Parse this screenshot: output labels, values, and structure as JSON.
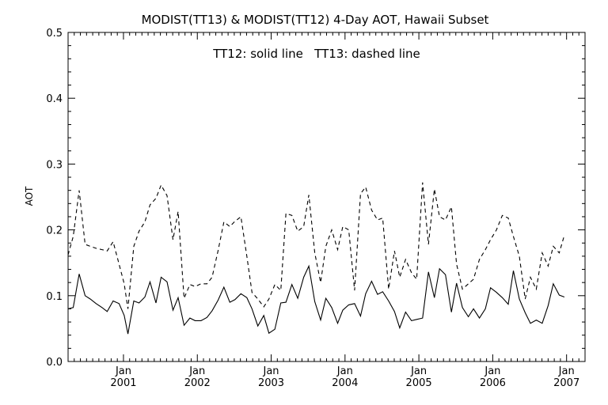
{
  "chart_data": {
    "type": "line",
    "title": "MODIST(TT13) & MODIST(TT12) 4-Day AOT, Hawaii Subset",
    "legend_text": "TT12: solid line   TT13: dashed line",
    "legend_placement": "top-center",
    "ylabel": "AOT",
    "xlabel": "",
    "ylim": [
      0.0,
      0.5
    ],
    "yticks": [
      "0.0",
      "0.1",
      "0.2",
      "0.3",
      "0.4",
      "0.5"
    ],
    "xlim": [
      2000.25,
      2007.25
    ],
    "xticks": [
      {
        "month": "Jan",
        "year": "2001",
        "value": 2001
      },
      {
        "month": "Jan",
        "year": "2002",
        "value": 2002
      },
      {
        "month": "Jan",
        "year": "2003",
        "value": 2003
      },
      {
        "month": "Jan",
        "year": "2004",
        "value": 2004
      },
      {
        "month": "Jan",
        "year": "2005",
        "value": 2005
      },
      {
        "month": "Jan",
        "year": "2006",
        "value": 2006
      },
      {
        "month": "Jan",
        "year": "2007",
        "value": 2007
      }
    ],
    "grid": false,
    "series": [
      {
        "name": "TT12",
        "style": "solid",
        "color": "#000000",
        "points": [
          [
            2000.25,
            0.08
          ],
          [
            2000.32,
            0.082
          ],
          [
            2000.4,
            0.133
          ],
          [
            2000.48,
            0.1
          ],
          [
            2000.55,
            0.095
          ],
          [
            2000.63,
            0.088
          ],
          [
            2000.71,
            0.082
          ],
          [
            2000.78,
            0.076
          ],
          [
            2000.86,
            0.092
          ],
          [
            2000.94,
            0.088
          ],
          [
            2001.01,
            0.07
          ],
          [
            2001.06,
            0.042
          ],
          [
            2001.14,
            0.092
          ],
          [
            2001.21,
            0.089
          ],
          [
            2001.29,
            0.098
          ],
          [
            2001.36,
            0.121
          ],
          [
            2001.44,
            0.089
          ],
          [
            2001.51,
            0.128
          ],
          [
            2001.59,
            0.121
          ],
          [
            2001.67,
            0.078
          ],
          [
            2001.74,
            0.097
          ],
          [
            2001.82,
            0.055
          ],
          [
            2001.9,
            0.066
          ],
          [
            2001.97,
            0.062
          ],
          [
            2002.05,
            0.062
          ],
          [
            2002.13,
            0.067
          ],
          [
            2002.2,
            0.077
          ],
          [
            2002.28,
            0.093
          ],
          [
            2002.36,
            0.113
          ],
          [
            2002.44,
            0.09
          ],
          [
            2002.51,
            0.094
          ],
          [
            2002.59,
            0.103
          ],
          [
            2002.67,
            0.097
          ],
          [
            2002.74,
            0.08
          ],
          [
            2002.82,
            0.054
          ],
          [
            2002.9,
            0.07
          ],
          [
            2002.97,
            0.043
          ],
          [
            2003.05,
            0.049
          ],
          [
            2003.13,
            0.089
          ],
          [
            2003.2,
            0.09
          ],
          [
            2003.28,
            0.117
          ],
          [
            2003.36,
            0.096
          ],
          [
            2003.44,
            0.128
          ],
          [
            2003.51,
            0.145
          ],
          [
            2003.59,
            0.091
          ],
          [
            2003.67,
            0.063
          ],
          [
            2003.74,
            0.096
          ],
          [
            2003.82,
            0.082
          ],
          [
            2003.9,
            0.058
          ],
          [
            2003.97,
            0.078
          ],
          [
            2004.05,
            0.086
          ],
          [
            2004.13,
            0.088
          ],
          [
            2004.21,
            0.069
          ],
          [
            2004.28,
            0.103
          ],
          [
            2004.36,
            0.122
          ],
          [
            2004.44,
            0.102
          ],
          [
            2004.51,
            0.106
          ],
          [
            2004.59,
            0.092
          ],
          [
            2004.67,
            0.076
          ],
          [
            2004.74,
            0.051
          ],
          [
            2004.82,
            0.075
          ],
          [
            2004.9,
            0.062
          ],
          [
            2004.97,
            0.064
          ],
          [
            2005.05,
            0.066
          ],
          [
            2005.13,
            0.136
          ],
          [
            2005.21,
            0.097
          ],
          [
            2005.28,
            0.141
          ],
          [
            2005.36,
            0.132
          ],
          [
            2005.44,
            0.075
          ],
          [
            2005.51,
            0.119
          ],
          [
            2005.59,
            0.082
          ],
          [
            2005.67,
            0.068
          ],
          [
            2005.74,
            0.08
          ],
          [
            2005.82,
            0.066
          ],
          [
            2005.9,
            0.08
          ],
          [
            2005.97,
            0.112
          ],
          [
            2006.05,
            0.105
          ],
          [
            2006.13,
            0.097
          ],
          [
            2006.21,
            0.087
          ],
          [
            2006.28,
            0.138
          ],
          [
            2006.36,
            0.095
          ],
          [
            2006.44,
            0.074
          ],
          [
            2006.51,
            0.058
          ],
          [
            2006.59,
            0.063
          ],
          [
            2006.67,
            0.058
          ],
          [
            2006.75,
            0.085
          ],
          [
            2006.82,
            0.118
          ],
          [
            2006.9,
            0.101
          ],
          [
            2006.97,
            0.098
          ]
        ]
      },
      {
        "name": "TT13",
        "style": "dashed",
        "color": "#000000",
        "points": [
          [
            2000.25,
            0.162
          ],
          [
            2000.32,
            0.19
          ],
          [
            2000.4,
            0.26
          ],
          [
            2000.48,
            0.178
          ],
          [
            2000.55,
            0.175
          ],
          [
            2000.63,
            0.172
          ],
          [
            2000.71,
            0.17
          ],
          [
            2000.78,
            0.168
          ],
          [
            2000.86,
            0.182
          ],
          [
            2000.94,
            0.148
          ],
          [
            2001.01,
            0.118
          ],
          [
            2001.06,
            0.08
          ],
          [
            2001.14,
            0.175
          ],
          [
            2001.21,
            0.198
          ],
          [
            2001.29,
            0.212
          ],
          [
            2001.36,
            0.238
          ],
          [
            2001.44,
            0.248
          ],
          [
            2001.51,
            0.268
          ],
          [
            2001.59,
            0.252
          ],
          [
            2001.67,
            0.185
          ],
          [
            2001.74,
            0.228
          ],
          [
            2001.82,
            0.096
          ],
          [
            2001.9,
            0.117
          ],
          [
            2001.97,
            0.114
          ],
          [
            2002.05,
            0.118
          ],
          [
            2002.13,
            0.118
          ],
          [
            2002.2,
            0.128
          ],
          [
            2002.28,
            0.168
          ],
          [
            2002.36,
            0.212
          ],
          [
            2002.44,
            0.205
          ],
          [
            2002.51,
            0.213
          ],
          [
            2002.59,
            0.22
          ],
          [
            2002.67,
            0.16
          ],
          [
            2002.74,
            0.105
          ],
          [
            2002.82,
            0.095
          ],
          [
            2002.9,
            0.083
          ],
          [
            2002.97,
            0.095
          ],
          [
            2003.05,
            0.117
          ],
          [
            2003.13,
            0.108
          ],
          [
            2003.2,
            0.225
          ],
          [
            2003.28,
            0.222
          ],
          [
            2003.36,
            0.198
          ],
          [
            2003.44,
            0.205
          ],
          [
            2003.51,
            0.253
          ],
          [
            2003.59,
            0.165
          ],
          [
            2003.67,
            0.12
          ],
          [
            2003.74,
            0.175
          ],
          [
            2003.82,
            0.2
          ],
          [
            2003.9,
            0.17
          ],
          [
            2003.97,
            0.205
          ],
          [
            2004.05,
            0.2
          ],
          [
            2004.13,
            0.108
          ],
          [
            2004.21,
            0.255
          ],
          [
            2004.28,
            0.265
          ],
          [
            2004.36,
            0.23
          ],
          [
            2004.44,
            0.215
          ],
          [
            2004.51,
            0.218
          ],
          [
            2004.59,
            0.11
          ],
          [
            2004.67,
            0.168
          ],
          [
            2004.74,
            0.128
          ],
          [
            2004.82,
            0.155
          ],
          [
            2004.9,
            0.135
          ],
          [
            2004.97,
            0.125
          ],
          [
            2005.05,
            0.272
          ],
          [
            2005.13,
            0.178
          ],
          [
            2005.21,
            0.262
          ],
          [
            2005.28,
            0.22
          ],
          [
            2005.36,
            0.215
          ],
          [
            2005.44,
            0.235
          ],
          [
            2005.51,
            0.148
          ],
          [
            2005.59,
            0.11
          ],
          [
            2005.67,
            0.118
          ],
          [
            2005.74,
            0.125
          ],
          [
            2005.82,
            0.155
          ],
          [
            2005.9,
            0.17
          ],
          [
            2005.97,
            0.185
          ],
          [
            2006.05,
            0.2
          ],
          [
            2006.13,
            0.222
          ],
          [
            2006.21,
            0.218
          ],
          [
            2006.28,
            0.19
          ],
          [
            2006.36,
            0.16
          ],
          [
            2006.44,
            0.095
          ],
          [
            2006.51,
            0.128
          ],
          [
            2006.59,
            0.11
          ],
          [
            2006.67,
            0.165
          ],
          [
            2006.75,
            0.145
          ],
          [
            2006.82,
            0.175
          ],
          [
            2006.9,
            0.165
          ],
          [
            2006.97,
            0.192
          ]
        ]
      }
    ]
  }
}
